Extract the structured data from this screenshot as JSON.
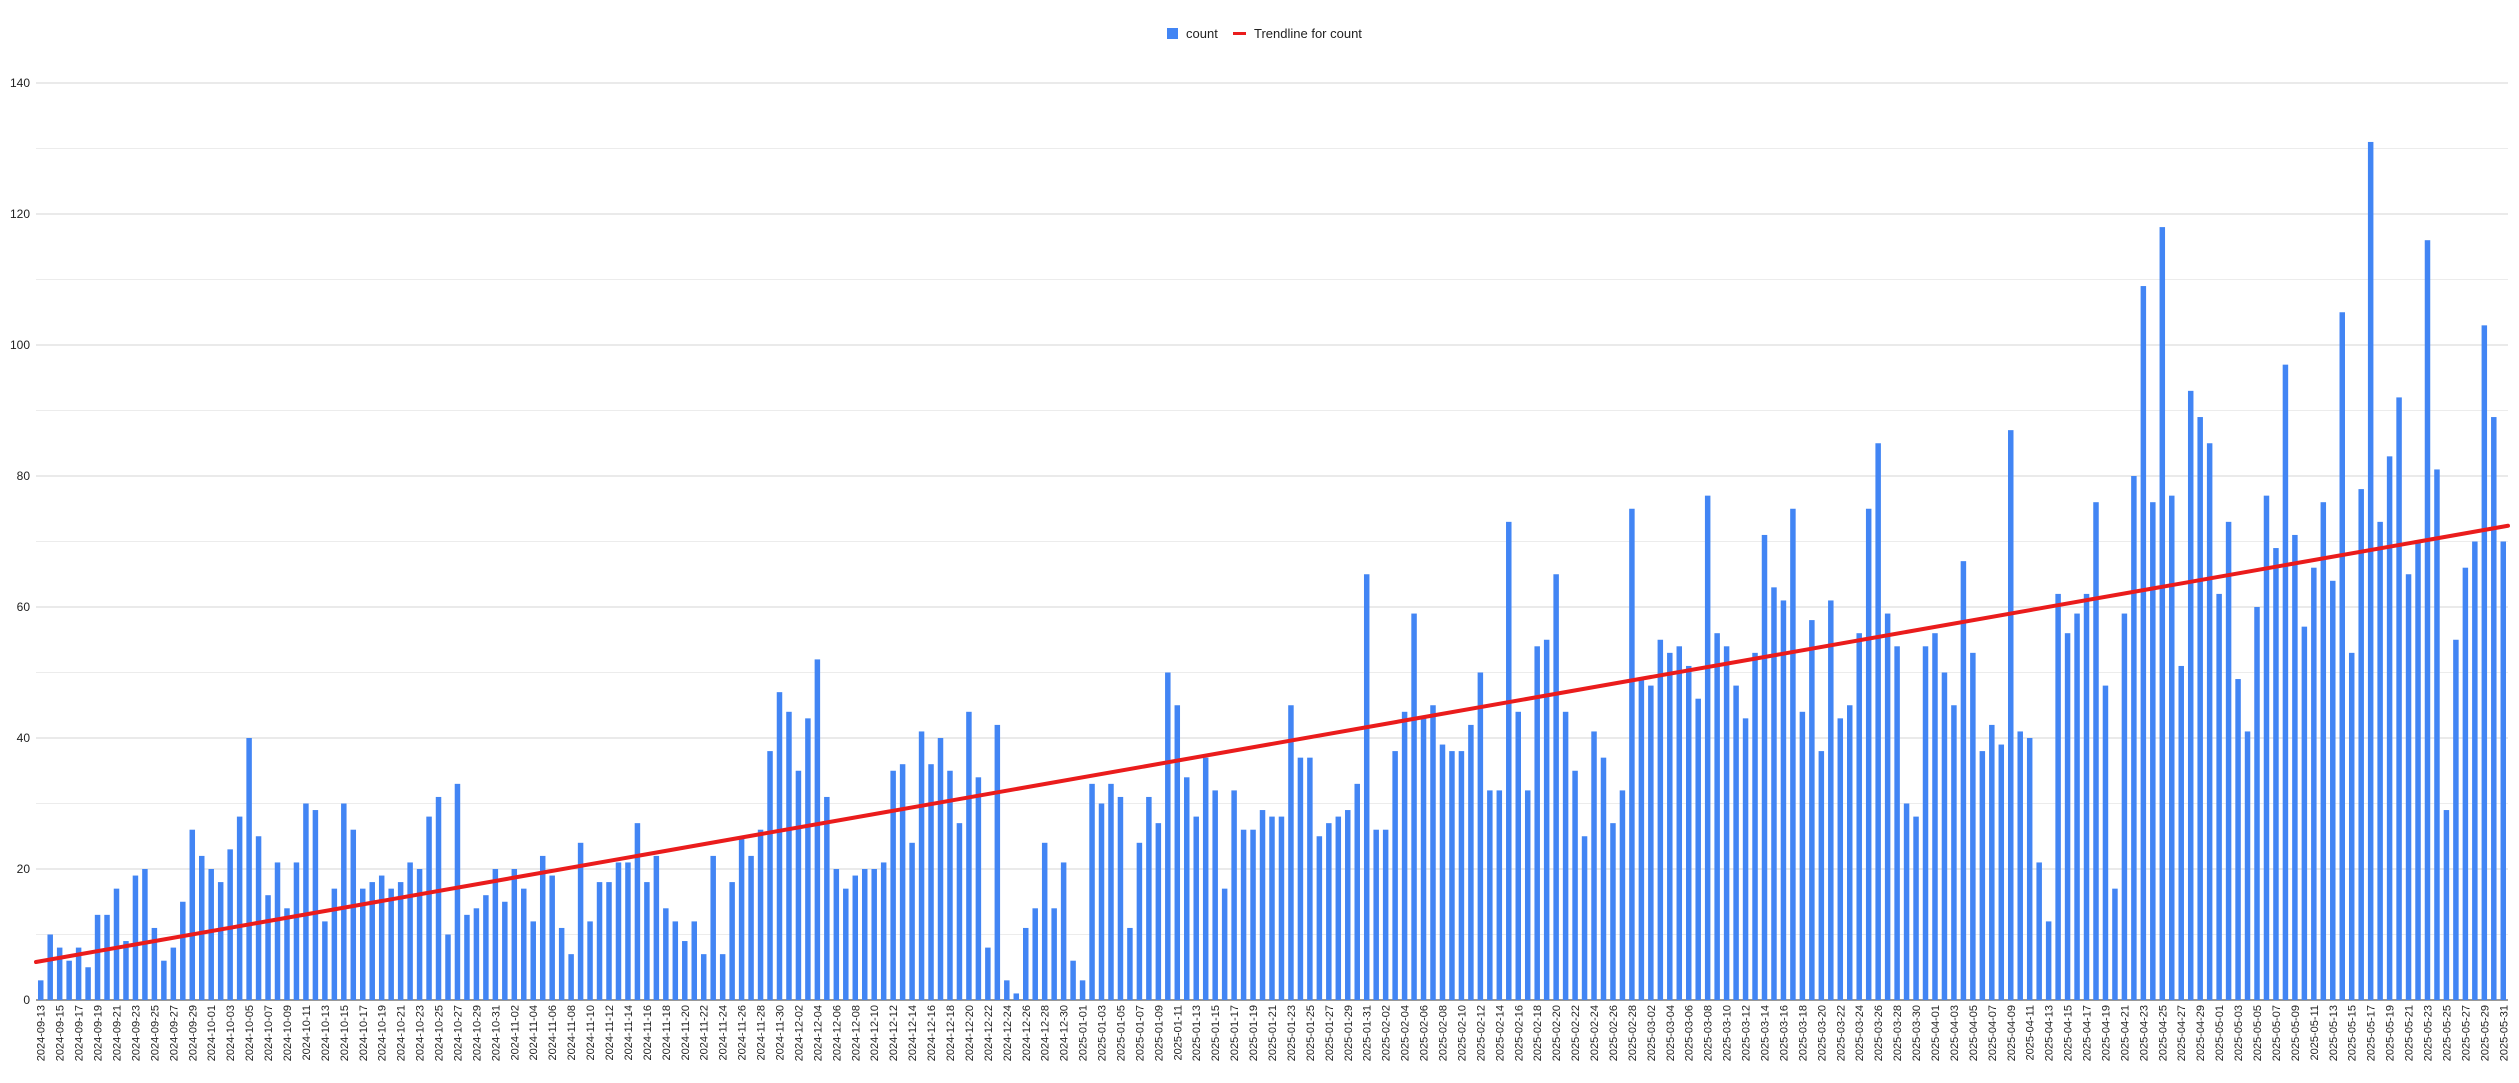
{
  "chart_data": {
    "type": "bar",
    "legend": {
      "position": "top-center",
      "entries": [
        {
          "label": "count",
          "color": "#4285F4",
          "kind": "bar"
        },
        {
          "label": "Trendline for count",
          "color": "#EA1C1C",
          "kind": "line"
        }
      ]
    },
    "grid": true,
    "ylim": [
      0,
      140
    ],
    "yticks": [
      0,
      20,
      40,
      60,
      80,
      100,
      120,
      140
    ],
    "start_date": "2024-09-13",
    "label_every": 2,
    "series": [
      {
        "name": "count",
        "color": "#4285F4",
        "values": [
          3,
          10,
          8,
          6,
          8,
          5,
          13,
          13,
          17,
          9,
          19,
          20,
          11,
          6,
          8,
          15,
          26,
          22,
          20,
          18,
          23,
          28,
          40,
          25,
          16,
          21,
          14,
          21,
          30,
          29,
          12,
          17,
          30,
          26,
          17,
          18,
          19,
          17,
          18,
          21,
          20,
          28,
          31,
          10,
          33,
          13,
          14,
          16,
          20,
          15,
          20,
          17,
          12,
          22,
          19,
          11,
          7,
          24,
          12,
          18,
          18,
          21,
          21,
          27,
          18,
          22,
          14,
          12,
          9,
          12,
          7,
          22,
          7,
          18,
          25,
          22,
          26,
          38,
          47,
          44,
          35,
          43,
          52,
          31,
          20,
          17,
          19,
          20,
          20,
          21,
          35,
          36,
          24,
          41,
          36,
          40,
          35,
          27,
          44,
          34,
          8,
          42,
          3,
          1,
          11,
          14,
          24,
          14,
          21,
          6,
          3,
          33,
          30,
          33,
          31,
          11,
          24,
          31,
          27,
          50,
          45,
          34,
          28,
          37,
          32,
          17,
          32,
          26,
          26,
          29,
          28,
          28,
          45,
          37,
          37,
          25,
          27,
          28,
          29,
          33,
          65,
          26,
          26,
          38,
          44,
          59,
          43,
          45,
          39,
          38,
          38,
          42,
          50,
          32,
          32,
          73,
          44,
          32,
          54,
          55,
          65,
          44,
          35,
          25,
          41,
          37,
          27,
          32,
          75,
          49,
          48,
          55,
          53,
          54,
          51,
          46,
          77,
          56,
          54,
          48,
          43,
          53,
          71,
          63,
          61,
          75,
          44,
          58,
          38,
          61,
          43,
          45,
          56,
          75,
          85,
          59,
          54,
          30,
          28,
          54,
          56,
          50,
          45,
          67,
          53,
          38,
          42,
          39,
          87,
          41,
          40,
          21,
          12,
          62,
          56,
          59,
          62,
          76,
          48,
          17,
          59,
          80,
          109,
          76,
          118,
          77,
          51,
          93,
          89,
          85,
          62,
          73,
          49,
          41,
          60,
          77,
          69,
          97,
          71,
          57,
          66,
          76,
          64,
          105,
          53,
          78,
          131,
          73,
          83,
          92,
          65,
          70,
          116,
          81,
          29,
          55,
          66,
          70,
          103,
          89,
          70
        ]
      }
    ],
    "trendline": {
      "name": "Trendline for count",
      "color": "#EA1C1C",
      "start_value": 5.8,
      "end_value": 72.4
    }
  }
}
